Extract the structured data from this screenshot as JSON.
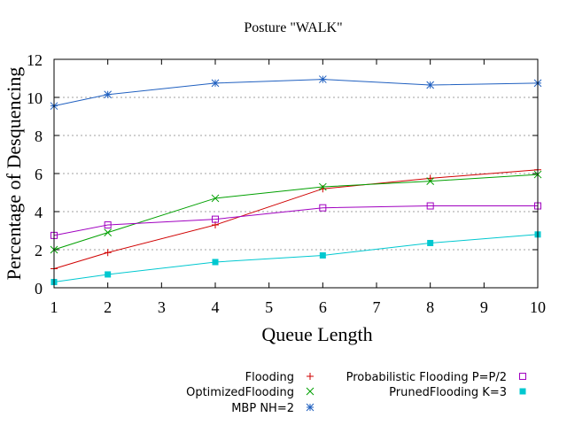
{
  "chart_data": {
    "type": "line",
    "title": "Posture \"WALK\"",
    "xlabel": "Queue Length",
    "ylabel": "Percentage of Desquencing",
    "categories": [
      "1",
      "2",
      "3",
      "4",
      "5",
      "6",
      "7",
      "8",
      "9",
      "10"
    ],
    "ylim": [
      0,
      12
    ],
    "yticks": [
      "0",
      "2",
      "4",
      "6",
      "8",
      "10",
      "12"
    ],
    "grid": true,
    "legend_position": "bottom",
    "series": [
      {
        "name": "Flooding",
        "color": "#d00000",
        "marker": "plus",
        "points": [
          [
            1,
            1.0
          ],
          [
            2,
            1.85
          ],
          [
            4,
            3.3
          ],
          [
            6,
            5.2
          ],
          [
            8,
            5.75
          ],
          [
            10,
            6.2
          ]
        ]
      },
      {
        "name": "OptimizedFlooding",
        "color": "#00a000",
        "marker": "x",
        "points": [
          [
            1,
            2.0
          ],
          [
            2,
            2.9
          ],
          [
            4,
            4.7
          ],
          [
            6,
            5.3
          ],
          [
            8,
            5.6
          ],
          [
            10,
            5.95
          ]
        ]
      },
      {
        "name": "MBP NH=2",
        "color": "#2060c0",
        "marker": "star",
        "points": [
          [
            1,
            9.55
          ],
          [
            2,
            10.15
          ],
          [
            4,
            10.75
          ],
          [
            6,
            10.95
          ],
          [
            8,
            10.65
          ],
          [
            10,
            10.75
          ]
        ]
      },
      {
        "name": "Probabilistic Flooding P=P/2",
        "color": "#a000c0",
        "marker": "open-square",
        "points": [
          [
            1,
            2.75
          ],
          [
            2,
            3.3
          ],
          [
            4,
            3.6
          ],
          [
            6,
            4.2
          ],
          [
            8,
            4.3
          ],
          [
            10,
            4.3
          ]
        ]
      },
      {
        "name": "PrunedFlooding K=3",
        "color": "#00c8d0",
        "marker": "filled-square",
        "points": [
          [
            1,
            0.3
          ],
          [
            2,
            0.7
          ],
          [
            4,
            1.35
          ],
          [
            6,
            1.7
          ],
          [
            8,
            2.35
          ],
          [
            10,
            2.8
          ]
        ]
      }
    ]
  }
}
